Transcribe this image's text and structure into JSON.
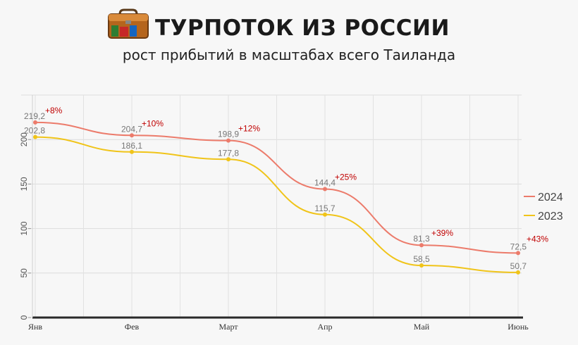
{
  "header": {
    "title": "ТУРПОТОК ИЗ РОССИИ",
    "subtitle": "рост прибытий в масштабах всего Таиланда",
    "logo_icon": "suitcase-icon"
  },
  "chart_data": {
    "type": "line",
    "title": "ТУРПОТОК ИЗ РОССИИ",
    "subtitle": "рост прибытий в масштабах всего Таиланда",
    "categories": [
      "Янв",
      "Фев",
      "Март",
      "Апр",
      "Май",
      "Июнь"
    ],
    "series": [
      {
        "name": "2024",
        "color": "#ec7b6b",
        "values": [
          219.2,
          204.7,
          198.9,
          144.4,
          81.3,
          72.5
        ],
        "labels": [
          "219,2",
          "204,7",
          "198,9",
          "144,4",
          "81,3",
          "72,5"
        ],
        "growth": [
          "+8%",
          "+10%",
          "+12%",
          "+25%",
          "+39%",
          "+43%"
        ]
      },
      {
        "name": "2023",
        "color": "#f0c419",
        "values": [
          202.8,
          186.1,
          177.8,
          115.7,
          58.5,
          50.7
        ],
        "labels": [
          "202,8",
          "186,1",
          "177,8",
          "115,7",
          "58,5",
          "50,7"
        ]
      }
    ],
    "yticks": [
      "0",
      "50",
      "100",
      "150",
      "200"
    ],
    "ylim": [
      0,
      250
    ],
    "grid": true,
    "legend_position": "right"
  }
}
